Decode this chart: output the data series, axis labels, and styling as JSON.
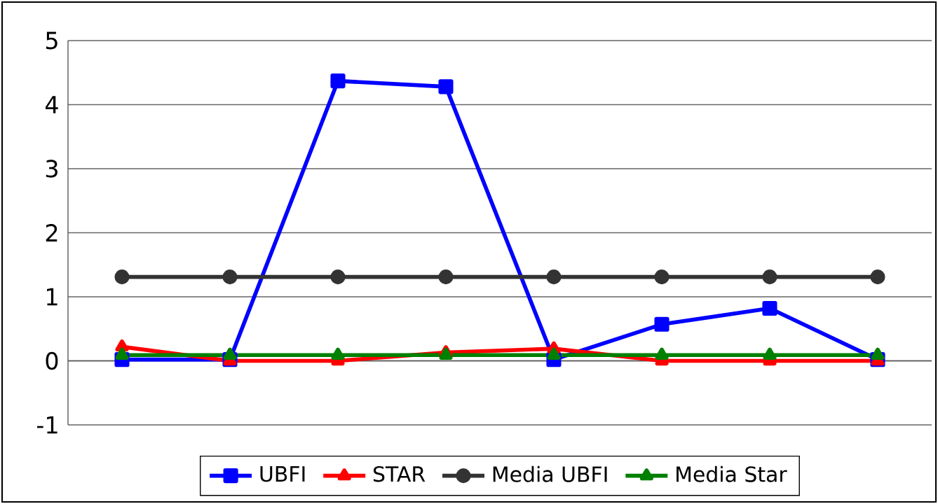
{
  "chart_data": {
    "type": "line",
    "categories": [
      null,
      null,
      null,
      null,
      null,
      null,
      null,
      null
    ],
    "series": [
      {
        "name": "UBFI",
        "color": "#0000ff",
        "marker": "square",
        "values": [
          0.02,
          0.02,
          4.37,
          4.28,
          0.02,
          0.57,
          0.82,
          0.02
        ]
      },
      {
        "name": "STAR",
        "color": "#ff0000",
        "marker": "triangle",
        "values": [
          0.22,
          0,
          0,
          0.13,
          0.19,
          0,
          0,
          0
        ]
      },
      {
        "name": "Media UBFI",
        "color": "#333333",
        "marker": "circle",
        "values": [
          1.31,
          1.31,
          1.31,
          1.31,
          1.31,
          1.31,
          1.31,
          1.31
        ]
      },
      {
        "name": "Media Star",
        "color": "#008000",
        "marker": "triangle",
        "values": [
          0.09,
          0.09,
          0.09,
          0.09,
          0.09,
          0.09,
          0.09,
          0.09
        ]
      }
    ],
    "ylim": [
      -1,
      5
    ],
    "yticks": [
      -1,
      0,
      1,
      2,
      3,
      4,
      5
    ],
    "grid": "y",
    "legend": "bottom",
    "tick_labels": "y"
  }
}
